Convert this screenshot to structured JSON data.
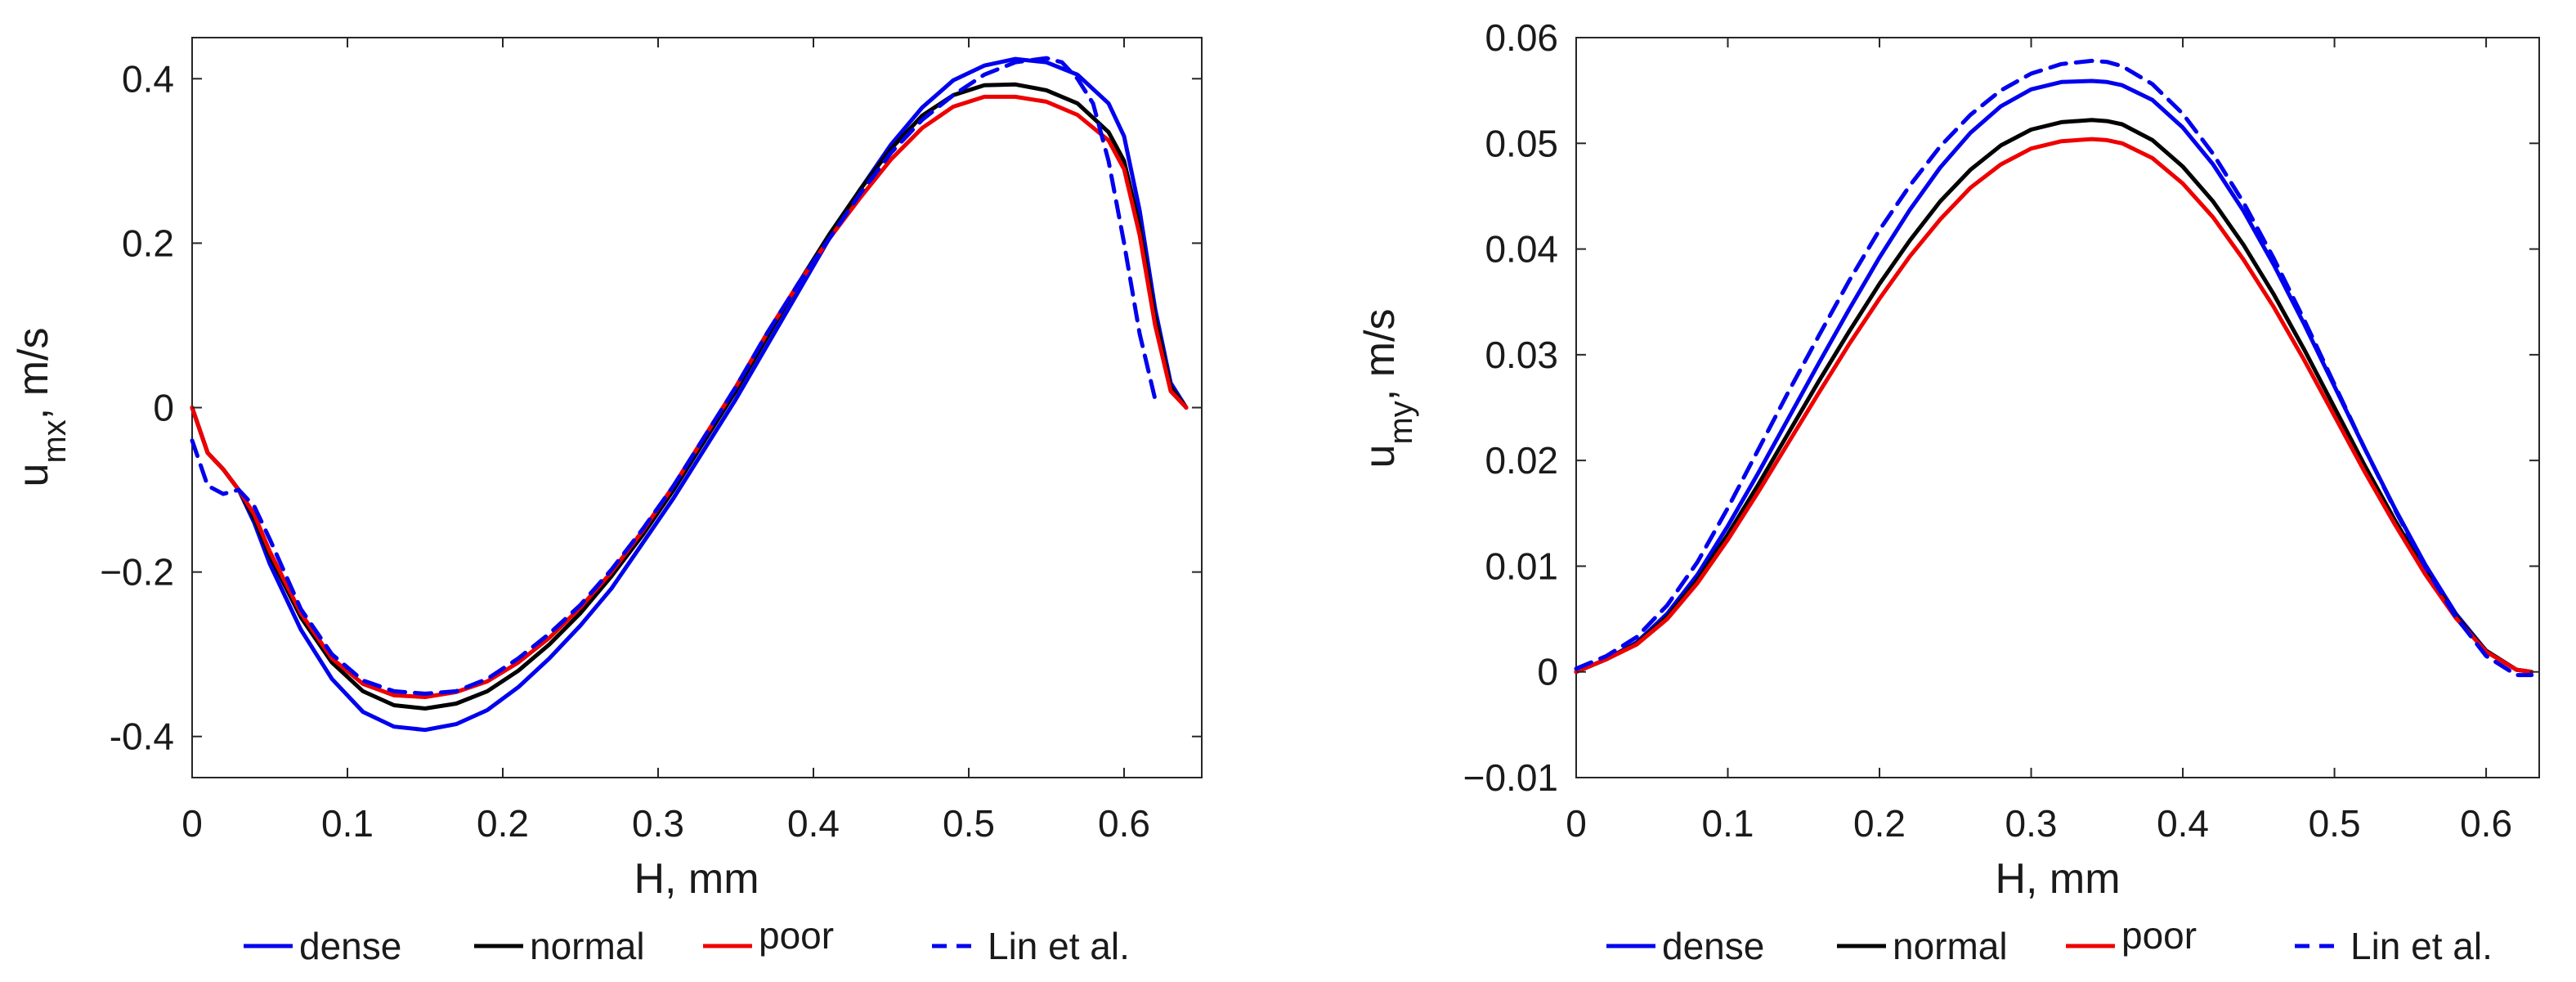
{
  "chart_data": [
    {
      "type": "line",
      "title": "",
      "xlabel": "H, mm",
      "ylabel": {
        "base": "u",
        "sub": "mx",
        "suffix": ", m/s"
      },
      "xlim": [
        0,
        0.65
      ],
      "ylim": [
        -0.45,
        0.45
      ],
      "xticks": [
        0,
        0.1,
        0.2,
        0.3,
        0.4,
        0.5,
        0.6
      ],
      "xtick_labels": [
        "0",
        "0.1",
        "0.2",
        "0.3",
        "0.4",
        "0.5",
        "0.6"
      ],
      "yticks": [
        -0.4,
        -0.2,
        0,
        0.2,
        0.4
      ],
      "ytick_labels": [
        "-0.4",
        "−0.2",
        "0",
        "0.2",
        "0.4"
      ],
      "grid": false,
      "series": [
        {
          "name": "dense",
          "color": "#0000ee",
          "dash": "solid",
          "x": [
            0,
            0.01,
            0.02,
            0.03,
            0.04,
            0.05,
            0.07,
            0.09,
            0.11,
            0.13,
            0.15,
            0.17,
            0.19,
            0.21,
            0.23,
            0.25,
            0.27,
            0.29,
            0.31,
            0.33,
            0.35,
            0.37,
            0.39,
            0.41,
            0.43,
            0.45,
            0.47,
            0.49,
            0.51,
            0.53,
            0.55,
            0.57,
            0.59,
            0.6,
            0.61,
            0.62,
            0.63,
            0.64
          ],
          "y": [
            0,
            -0.055,
            -0.075,
            -0.1,
            -0.14,
            -0.19,
            -0.27,
            -0.33,
            -0.37,
            -0.388,
            -0.392,
            -0.385,
            -0.368,
            -0.34,
            -0.305,
            -0.265,
            -0.22,
            -0.165,
            -0.11,
            -0.05,
            0.01,
            0.075,
            0.14,
            0.205,
            0.265,
            0.32,
            0.365,
            0.398,
            0.416,
            0.424,
            0.42,
            0.405,
            0.37,
            0.33,
            0.24,
            0.12,
            0.03,
            0
          ]
        },
        {
          "name": "normal",
          "color": "#000000",
          "dash": "solid",
          "x": [
            0,
            0.01,
            0.02,
            0.03,
            0.04,
            0.05,
            0.07,
            0.09,
            0.11,
            0.13,
            0.15,
            0.17,
            0.19,
            0.21,
            0.23,
            0.25,
            0.27,
            0.29,
            0.31,
            0.33,
            0.35,
            0.37,
            0.39,
            0.41,
            0.43,
            0.45,
            0.47,
            0.49,
            0.51,
            0.53,
            0.55,
            0.57,
            0.59,
            0.6,
            0.61,
            0.62,
            0.63,
            0.64
          ],
          "y": [
            0,
            -0.055,
            -0.075,
            -0.1,
            -0.135,
            -0.18,
            -0.255,
            -0.31,
            -0.345,
            -0.362,
            -0.366,
            -0.36,
            -0.345,
            -0.32,
            -0.288,
            -0.25,
            -0.205,
            -0.155,
            -0.1,
            -0.04,
            0.02,
            0.085,
            0.15,
            0.21,
            0.265,
            0.315,
            0.355,
            0.38,
            0.392,
            0.393,
            0.386,
            0.37,
            0.335,
            0.3,
            0.22,
            0.11,
            0.025,
            0
          ]
        },
        {
          "name": "poor",
          "color": "#ee0000",
          "dash": "solid",
          "x": [
            0,
            0.01,
            0.02,
            0.03,
            0.04,
            0.05,
            0.07,
            0.09,
            0.11,
            0.13,
            0.15,
            0.17,
            0.19,
            0.21,
            0.23,
            0.25,
            0.27,
            0.29,
            0.31,
            0.33,
            0.35,
            0.37,
            0.39,
            0.41,
            0.43,
            0.45,
            0.47,
            0.49,
            0.51,
            0.53,
            0.55,
            0.57,
            0.59,
            0.6,
            0.61,
            0.62,
            0.63,
            0.64
          ],
          "y": [
            0,
            -0.055,
            -0.075,
            -0.1,
            -0.13,
            -0.175,
            -0.25,
            -0.305,
            -0.336,
            -0.35,
            -0.352,
            -0.346,
            -0.333,
            -0.31,
            -0.28,
            -0.243,
            -0.2,
            -0.15,
            -0.095,
            -0.035,
            0.025,
            0.09,
            0.15,
            0.205,
            0.255,
            0.302,
            0.34,
            0.366,
            0.378,
            0.378,
            0.372,
            0.356,
            0.325,
            0.29,
            0.21,
            0.1,
            0.02,
            0
          ]
        },
        {
          "name": "Lin et al.",
          "color": "#0000ee",
          "dash": "dashed",
          "x": [
            0,
            0.01,
            0.02,
            0.03,
            0.04,
            0.05,
            0.07,
            0.09,
            0.11,
            0.13,
            0.15,
            0.17,
            0.19,
            0.21,
            0.23,
            0.25,
            0.27,
            0.29,
            0.31,
            0.33,
            0.35,
            0.37,
            0.39,
            0.41,
            0.43,
            0.45,
            0.47,
            0.49,
            0.51,
            0.53,
            0.55,
            0.56,
            0.57,
            0.58,
            0.59,
            0.6,
            0.61,
            0.62
          ],
          "y": [
            -0.04,
            -0.095,
            -0.105,
            -0.1,
            -0.12,
            -0.16,
            -0.245,
            -0.3,
            -0.332,
            -0.345,
            -0.348,
            -0.345,
            -0.33,
            -0.305,
            -0.275,
            -0.24,
            -0.197,
            -0.148,
            -0.095,
            -0.035,
            0.025,
            0.09,
            0.15,
            0.205,
            0.26,
            0.31,
            0.35,
            0.38,
            0.405,
            0.42,
            0.425,
            0.42,
            0.4,
            0.37,
            0.3,
            0.2,
            0.09,
            0.01
          ]
        }
      ]
    },
    {
      "type": "line",
      "title": "",
      "xlabel": "H, mm",
      "ylabel": {
        "base": "u",
        "sub": "my",
        "suffix": ", m/s"
      },
      "xlim": [
        0,
        0.635
      ],
      "ylim": [
        -0.01,
        0.06
      ],
      "xticks": [
        0,
        0.1,
        0.2,
        0.3,
        0.4,
        0.5,
        0.6
      ],
      "xtick_labels": [
        "0",
        "0.1",
        "0.2",
        "0.3",
        "0.4",
        "0.5",
        "0.6"
      ],
      "yticks": [
        -0.01,
        0,
        0.01,
        0.02,
        0.03,
        0.04,
        0.05,
        0.06
      ],
      "ytick_labels": [
        "−0.01",
        "0",
        "0.01",
        "0.02",
        "0.03",
        "0.04",
        "0.05",
        "0.06"
      ],
      "grid": false,
      "series": [
        {
          "name": "dense",
          "color": "#0000ee",
          "dash": "solid",
          "x": [
            0,
            0.02,
            0.04,
            0.06,
            0.08,
            0.1,
            0.12,
            0.14,
            0.16,
            0.18,
            0.2,
            0.22,
            0.24,
            0.26,
            0.28,
            0.3,
            0.32,
            0.34,
            0.35,
            0.36,
            0.38,
            0.4,
            0.42,
            0.44,
            0.46,
            0.48,
            0.5,
            0.52,
            0.54,
            0.56,
            0.58,
            0.6,
            0.62,
            0.63
          ],
          "y": [
            0,
            0.0012,
            0.0028,
            0.0055,
            0.0092,
            0.0138,
            0.0188,
            0.024,
            0.0292,
            0.0343,
            0.0392,
            0.0437,
            0.0477,
            0.051,
            0.0535,
            0.0551,
            0.0558,
            0.0559,
            0.0558,
            0.0555,
            0.0541,
            0.0515,
            0.048,
            0.0436,
            0.0385,
            0.0329,
            0.027,
            0.0211,
            0.0154,
            0.0101,
            0.0055,
            0.002,
            0.0002,
            0
          ]
        },
        {
          "name": "normal",
          "color": "#000000",
          "dash": "solid",
          "x": [
            0,
            0.02,
            0.04,
            0.06,
            0.08,
            0.1,
            0.12,
            0.14,
            0.16,
            0.18,
            0.2,
            0.22,
            0.24,
            0.26,
            0.28,
            0.3,
            0.32,
            0.34,
            0.35,
            0.36,
            0.38,
            0.4,
            0.42,
            0.44,
            0.46,
            0.48,
            0.5,
            0.52,
            0.54,
            0.56,
            0.58,
            0.6,
            0.62,
            0.63
          ],
          "y": [
            0,
            0.0012,
            0.0027,
            0.0052,
            0.0087,
            0.013,
            0.0177,
            0.0226,
            0.0275,
            0.0322,
            0.0367,
            0.0408,
            0.0445,
            0.0475,
            0.0498,
            0.0513,
            0.052,
            0.0522,
            0.0521,
            0.0518,
            0.0503,
            0.0478,
            0.0445,
            0.0404,
            0.0357,
            0.0305,
            0.025,
            0.0195,
            0.0143,
            0.0095,
            0.0053,
            0.002,
            0.0002,
            0
          ]
        },
        {
          "name": "poor",
          "color": "#ee0000",
          "dash": "solid",
          "x": [
            0,
            0.02,
            0.04,
            0.06,
            0.08,
            0.1,
            0.12,
            0.14,
            0.16,
            0.18,
            0.2,
            0.22,
            0.24,
            0.26,
            0.28,
            0.3,
            0.32,
            0.34,
            0.35,
            0.36,
            0.38,
            0.4,
            0.42,
            0.44,
            0.46,
            0.48,
            0.5,
            0.52,
            0.54,
            0.56,
            0.58,
            0.6,
            0.62,
            0.63
          ],
          "y": [
            0,
            0.0012,
            0.0026,
            0.005,
            0.0084,
            0.0125,
            0.017,
            0.0217,
            0.0264,
            0.031,
            0.0353,
            0.0393,
            0.0428,
            0.0458,
            0.048,
            0.0495,
            0.0502,
            0.0504,
            0.0503,
            0.05,
            0.0486,
            0.0462,
            0.043,
            0.039,
            0.0345,
            0.0295,
            0.0242,
            0.0189,
            0.0139,
            0.0092,
            0.0051,
            0.0019,
            0.0002,
            0
          ]
        },
        {
          "name": "Lin et al.",
          "color": "#0000ee",
          "dash": "dashed",
          "x": [
            0,
            0.02,
            0.04,
            0.06,
            0.08,
            0.1,
            0.12,
            0.14,
            0.16,
            0.18,
            0.2,
            0.22,
            0.24,
            0.26,
            0.28,
            0.3,
            0.32,
            0.34,
            0.35,
            0.36,
            0.38,
            0.4,
            0.42,
            0.44,
            0.46,
            0.48,
            0.5,
            0.52,
            0.54,
            0.56,
            0.58,
            0.6,
            0.62,
            0.63
          ],
          "y": [
            0.0003,
            0.0015,
            0.0033,
            0.0063,
            0.0104,
            0.0155,
            0.021,
            0.0265,
            0.0318,
            0.037,
            0.0418,
            0.046,
            0.0497,
            0.0527,
            0.055,
            0.0566,
            0.0575,
            0.0578,
            0.0577,
            0.0573,
            0.0556,
            0.0528,
            0.049,
            0.0444,
            0.0391,
            0.0333,
            0.0272,
            0.0211,
            0.0153,
            0.0099,
            0.0052,
            0.0015,
            -0.0003,
            -0.0003
          ]
        }
      ]
    }
  ]
}
